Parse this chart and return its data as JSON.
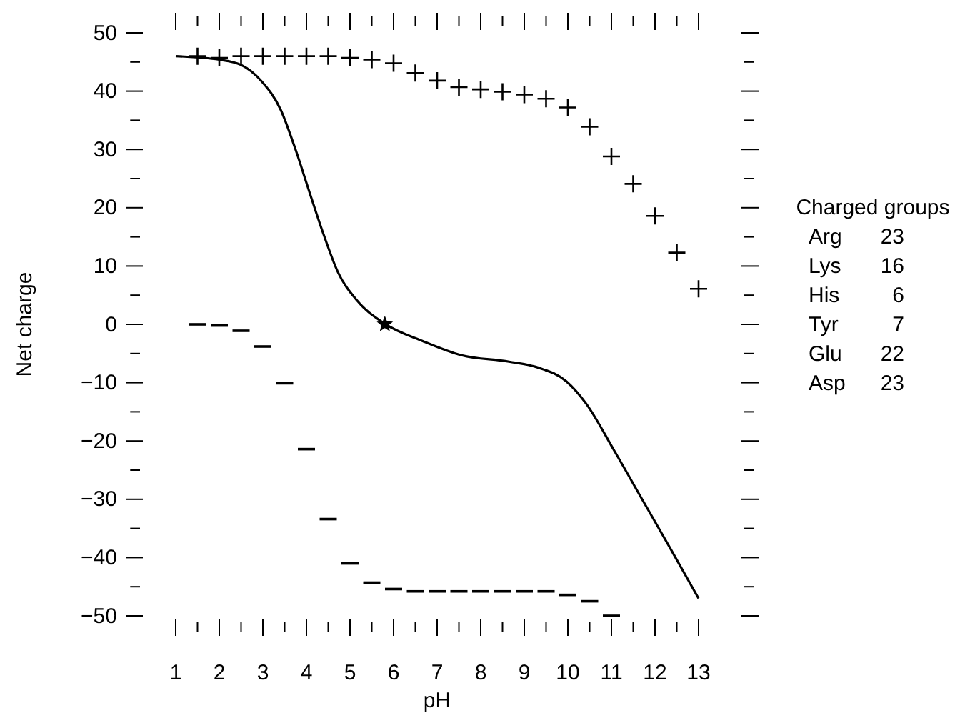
{
  "chart_data": {
    "type": "scatter",
    "xlabel": "pH",
    "ylabel": "Net charge",
    "xlim": [
      1,
      13
    ],
    "ylim": [
      -50,
      50
    ],
    "xticks": [
      1,
      {
        "value": 1.5,
        "label": null
      },
      2,
      {
        "value": 2.5,
        "label": null
      },
      3,
      {
        "value": 3.5,
        "label": null
      },
      4,
      {
        "value": 4.5,
        "label": null
      },
      5,
      {
        "value": 5.5,
        "label": null
      },
      6,
      {
        "value": 6.5,
        "label": null
      },
      7,
      {
        "value": 7.5,
        "label": null
      },
      8,
      {
        "value": 8.5,
        "label": null
      },
      9,
      {
        "value": 9.5,
        "label": null
      },
      10,
      {
        "value": 10.5,
        "label": null
      },
      11,
      {
        "value": 11.5,
        "label": null
      },
      12,
      {
        "value": 12.5,
        "label": null
      },
      13
    ],
    "yticks": [
      {
        "value": -50,
        "label": "−50"
      },
      {
        "value": -45,
        "label": null
      },
      {
        "value": -40,
        "label": "−40"
      },
      {
        "value": -35,
        "label": null
      },
      {
        "value": -30,
        "label": "−30"
      },
      {
        "value": -25,
        "label": null
      },
      {
        "value": -20,
        "label": "−20"
      },
      {
        "value": -15,
        "label": null
      },
      {
        "value": -10,
        "label": "−10"
      },
      {
        "value": -5,
        "label": null
      },
      0,
      {
        "value": 5,
        "label": null
      },
      10,
      {
        "value": 15,
        "label": null
      },
      20,
      {
        "value": 25,
        "label": null
      },
      30,
      {
        "value": 35,
        "label": null
      },
      40,
      {
        "value": 45,
        "label": null
      },
      50
    ],
    "series": [
      {
        "marker": "cross",
        "color": "#000000",
        "x": [
          1.5,
          2,
          2.5,
          3,
          3.5,
          4,
          4.5,
          5,
          5.5,
          6,
          6.5,
          7,
          7.5,
          8,
          8.5,
          9,
          9.5,
          10,
          10.5,
          11,
          11.5,
          12,
          12.5,
          13
        ],
        "values": [
          46,
          45.7,
          46,
          46,
          46,
          46,
          46,
          45.7,
          45.4,
          44.8,
          43.1,
          41.8,
          40.7,
          40.3,
          39.9,
          39.4,
          38.7,
          37.2,
          33.9,
          28.8,
          24.1,
          18.6,
          12.3,
          6.1
        ]
      },
      {
        "color": "#000000",
        "x": [
          1.5,
          2,
          2.5,
          3,
          3.5,
          4,
          4.5,
          5,
          5.5,
          6,
          6.5,
          7,
          7.5,
          8,
          8.5,
          9,
          9.5,
          10,
          10.5,
          11
        ],
        "values": [
          0,
          -0.2,
          -1.1,
          -3.8,
          -10.1,
          -21.4,
          -33.4,
          -41,
          -44.3,
          -45.4,
          -45.8,
          -45.8,
          -45.8,
          -45.8,
          -45.8,
          -45.8,
          -45.8,
          -46.4,
          -47.5,
          -50
        ]
      },
      {
        "type": "line",
        "marker": "none",
        "line_style": "solid",
        "color": "#000000",
        "x": [
          1,
          2,
          2.5,
          2.97,
          3.41,
          3.74,
          4.06,
          4.39,
          4.72,
          5.16,
          5.78,
          6.68,
          7.56,
          8.65,
          9.31,
          9.97,
          10.41,
          11.06,
          11.72,
          12.38,
          13
        ],
        "values": [
          46,
          45.4,
          44.5,
          41.7,
          36.8,
          30.2,
          22.9,
          15.5,
          9,
          4.1,
          0.2,
          -2.9,
          -5.3,
          -6.4,
          -7.4,
          -9.8,
          -13.5,
          -21.6,
          -30.2,
          -38.8,
          -47
        ]
      },
      {
        "marker": "star",
        "color": "#000000",
        "x": [
          5.8
        ],
        "values": [
          0
        ]
      }
    ],
    "annotations": [
      "Charged groups",
      "Arg 23",
      "Lys 16",
      "His 6",
      "Tyr 7",
      "Glu 22",
      "Asp 23"
    ]
  }
}
